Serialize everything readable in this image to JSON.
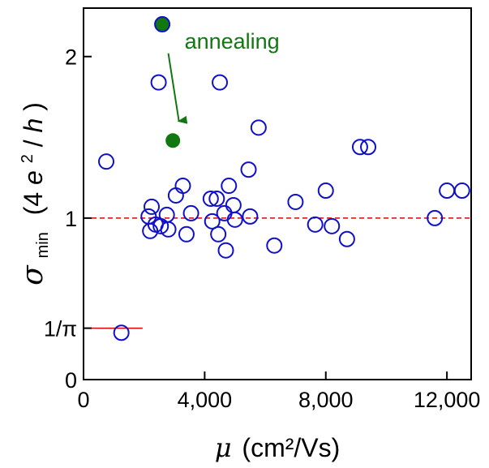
{
  "chart_data": {
    "type": "scatter",
    "title": "",
    "xlabel": {
      "symbol": "μ",
      "unit": "(cm²/Vs)"
    },
    "ylabel": {
      "symbol": "σ",
      "subscript": "min",
      "unit_pre": "(4",
      "unit_e": "e",
      "unit_sup": "2",
      "unit_slash": "/",
      "unit_h": "h",
      "unit_post": ")"
    },
    "xlim": [
      0,
      12800
    ],
    "ylim": [
      0,
      2.3
    ],
    "x_ticks": [
      {
        "value": 0,
        "label": "0"
      },
      {
        "value": 4000,
        "label": "4,000"
      },
      {
        "value": 8000,
        "label": "8,000"
      },
      {
        "value": 12000,
        "label": "12,000"
      }
    ],
    "y_ticks": [
      {
        "value": 0,
        "label": "0"
      },
      {
        "value": 0.3183,
        "label": "1/π"
      },
      {
        "value": 1,
        "label": "1"
      },
      {
        "value": 2,
        "label": "2"
      }
    ],
    "grid": false,
    "reference_lines": [
      {
        "y": 1,
        "x_range": [
          0,
          12800
        ],
        "style": "dashed",
        "color": "#dd0000"
      },
      {
        "y": 0.3183,
        "x_range": [
          0,
          1950
        ],
        "style": "solid",
        "color": "#dd0000"
      }
    ],
    "series": [
      {
        "marker": "open-circle",
        "color": "#1010cc",
        "points": [
          [
            750,
            1.35
          ],
          [
            2480,
            1.84
          ],
          [
            4500,
            1.84
          ],
          [
            5780,
            1.56
          ],
          [
            9130,
            1.44
          ],
          [
            9400,
            1.44
          ],
          [
            3280,
            1.2
          ],
          [
            4800,
            1.2
          ],
          [
            5450,
            1.3
          ],
          [
            3050,
            1.14
          ],
          [
            4200,
            1.12
          ],
          [
            4400,
            1.12
          ],
          [
            7000,
            1.1
          ],
          [
            8000,
            1.17
          ],
          [
            12000,
            1.17
          ],
          [
            12500,
            1.17
          ],
          [
            2250,
            1.07
          ],
          [
            2150,
            1.01
          ],
          [
            2750,
            1.02
          ],
          [
            3550,
            1.03
          ],
          [
            4650,
            1.03
          ],
          [
            4950,
            1.08
          ],
          [
            5000,
            0.99
          ],
          [
            5500,
            1.01
          ],
          [
            2550,
            0.95
          ],
          [
            2800,
            0.93
          ],
          [
            2200,
            0.92
          ],
          [
            2380,
            0.96
          ],
          [
            3400,
            0.9
          ],
          [
            4450,
            0.9
          ],
          [
            4250,
            0.98
          ],
          [
            4700,
            0.8
          ],
          [
            6300,
            0.83
          ],
          [
            7650,
            0.96
          ],
          [
            8200,
            0.95
          ],
          [
            8700,
            0.87
          ],
          [
            11600,
            1.0
          ],
          [
            1250,
            0.29
          ]
        ]
      },
      {
        "marker": "filled-circle",
        "color": "#117711",
        "edge_color": "#1010cc",
        "points": [
          [
            2600,
            2.2
          ]
        ]
      },
      {
        "marker": "filled-circle",
        "color": "#117711",
        "points": [
          [
            2950,
            1.48
          ]
        ]
      }
    ],
    "annotations": [
      {
        "text": "annealing",
        "color": "#117711",
        "arrow_from": [
          2800,
          2.02
        ],
        "arrow_to": [
          3150,
          1.6
        ]
      }
    ]
  }
}
